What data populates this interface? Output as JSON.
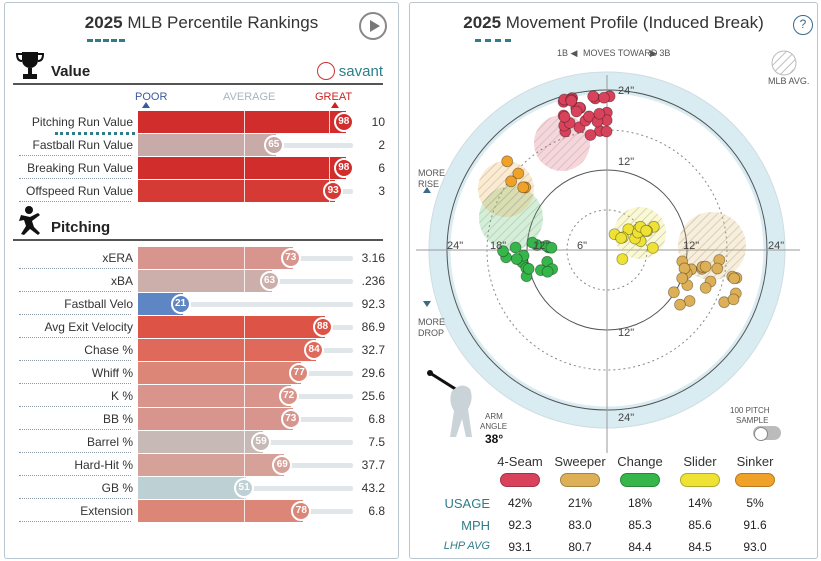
{
  "left": {
    "title_year": "2025",
    "title_text": "MLB Percentile Rankings",
    "value_section": "Value",
    "pitching_section": "Pitching",
    "brand": "savant",
    "scale": {
      "poor": "POOR",
      "average": "AVERAGE",
      "great": "GREAT"
    },
    "value_rows": [
      {
        "name": "Pitching Run Value",
        "pct": 98,
        "val": "10",
        "color": "#d22d2d"
      },
      {
        "name": "Fastball Run Value",
        "pct": 65,
        "val": "2",
        "color": "#c8aaa8"
      },
      {
        "name": "Breaking Run Value",
        "pct": 98,
        "val": "6",
        "color": "#d22d2d"
      },
      {
        "name": "Offspeed Run Value",
        "pct": 93,
        "val": "3",
        "color": "#d63a35"
      }
    ],
    "pitching_rows": [
      {
        "name": "xERA",
        "pct": 73,
        "val": "3.16",
        "color": "#d8958d"
      },
      {
        "name": "xBA",
        "pct": 63,
        "val": ".236",
        "color": "#ccaeaa"
      },
      {
        "name": "Fastball Velo",
        "pct": 21,
        "val": "92.3",
        "color": "#5f86c4"
      },
      {
        "name": "Avg Exit Velocity",
        "pct": 88,
        "val": "86.9",
        "color": "#dd5447"
      },
      {
        "name": "Chase %",
        "pct": 84,
        "val": "32.7",
        "color": "#df6a5b"
      },
      {
        "name": "Whiff %",
        "pct": 77,
        "val": "29.6",
        "color": "#dc8678"
      },
      {
        "name": "K %",
        "pct": 72,
        "val": "25.6",
        "color": "#d9958c"
      },
      {
        "name": "BB %",
        "pct": 73,
        "val": "6.8",
        "color": "#d8958d"
      },
      {
        "name": "Barrel %",
        "pct": 59,
        "val": "7.5",
        "color": "#c6b9b6"
      },
      {
        "name": "Hard-Hit %",
        "pct": 69,
        "val": "37.7",
        "color": "#d6a198"
      },
      {
        "name": "GB %",
        "pct": 51,
        "val": "43.2",
        "color": "#bdd0d4"
      },
      {
        "name": "Extension",
        "pct": 78,
        "val": "6.8",
        "color": "#dc8678"
      }
    ]
  },
  "right": {
    "title_year": "2025",
    "title_text": "Movement Profile (Induced Break)",
    "help": "?",
    "moves_toward": {
      "left": "1B ◀",
      "mid": "MOVES TOWARD",
      "right": "▶ 3B"
    },
    "mlb_avg": "MLB AVG.",
    "more_rise": [
      "MORE",
      "RISE"
    ],
    "more_drop": [
      "MORE",
      "DROP"
    ],
    "ring_labels": [
      "24\"",
      "12\"",
      "24\"",
      "18\"",
      "12\"",
      "6\"",
      "12\"",
      "24\"",
      "12\"",
      "24\""
    ],
    "arm_angle_label": [
      "ARM",
      "ANGLE"
    ],
    "arm_angle_value": "38°",
    "sample_label": [
      "100 PITCH",
      "SAMPLE"
    ],
    "pitch_types": [
      {
        "name": "4-Seam",
        "color": "#d8435b",
        "usage": "42%",
        "mph": "92.3",
        "lhp_avg": "93.1"
      },
      {
        "name": "Sweeper",
        "color": "#ddb057",
        "usage": "21%",
        "mph": "83.0",
        "lhp_avg": "80.7"
      },
      {
        "name": "Change",
        "color": "#35b54a",
        "usage": "18%",
        "mph": "85.3",
        "lhp_avg": "84.4"
      },
      {
        "name": "Slider",
        "color": "#eee234",
        "usage": "14%",
        "mph": "85.6",
        "lhp_avg": "84.5"
      },
      {
        "name": "Sinker",
        "color": "#f0a228",
        "usage": "5%",
        "mph": "91.6",
        "lhp_avg": "93.0"
      }
    ],
    "stat_labels": {
      "usage": "USAGE",
      "mph": "MPH",
      "lhp_avg": "LHP AVG"
    }
  }
}
